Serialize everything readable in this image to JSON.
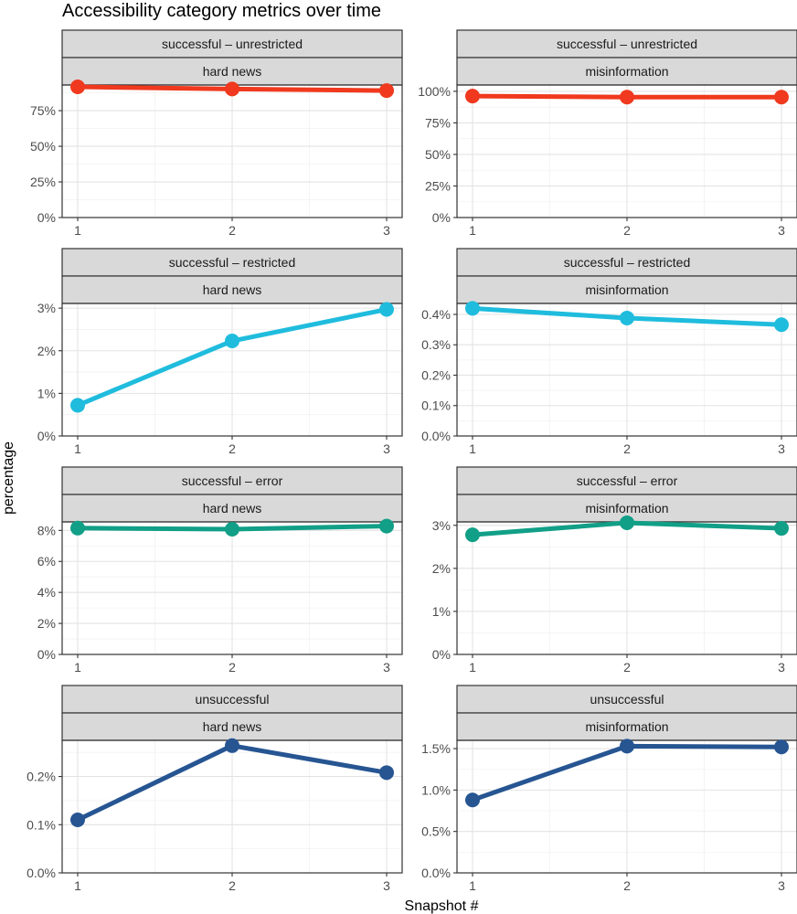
{
  "chart_data": {
    "type": "line",
    "title": "Accessibility category metrics over time",
    "xlabel": "Snapshot #",
    "ylabel": "percentage",
    "x": [
      1,
      2,
      3
    ],
    "x_tick_labels": [
      "1",
      "2",
      "3"
    ],
    "grid": true,
    "panels": [
      {
        "row_label": "successful – unrestricted",
        "col_label": "hard news",
        "color": "#f0391e",
        "values": [
          0.917,
          0.902,
          0.891
        ],
        "ylim": [
          0,
          0.93
        ],
        "y_ticks": [
          0,
          0.25,
          0.5,
          0.75
        ],
        "y_tick_labels": [
          "0%",
          "25%",
          "50%",
          "75%"
        ]
      },
      {
        "row_label": "successful – unrestricted",
        "col_label": "misinformation",
        "color": "#f0391e",
        "values": [
          0.962,
          0.954,
          0.954
        ],
        "ylim": [
          0,
          1.05
        ],
        "y_ticks": [
          0,
          0.25,
          0.5,
          0.75,
          1.0
        ],
        "y_tick_labels": [
          "0%",
          "25%",
          "50%",
          "75%",
          "100%"
        ]
      },
      {
        "row_label": "successful – restricted",
        "col_label": "hard news",
        "color": "#1fbcdd",
        "values": [
          0.0072,
          0.0223,
          0.0297
        ],
        "ylim": [
          0,
          0.0311
        ],
        "y_ticks": [
          0,
          0.01,
          0.02,
          0.03
        ],
        "y_tick_labels": [
          "0%",
          "1%",
          "2%",
          "3%"
        ]
      },
      {
        "row_label": "successful – restricted",
        "col_label": "misinformation",
        "color": "#1fbcdd",
        "values": [
          0.0042,
          0.00388,
          0.00366
        ],
        "ylim": [
          0,
          0.00436
        ],
        "y_ticks": [
          0,
          0.001,
          0.002,
          0.003,
          0.004
        ],
        "y_tick_labels": [
          "0.0%",
          "0.1%",
          "0.2%",
          "0.3%",
          "0.4%"
        ]
      },
      {
        "row_label": "successful – error",
        "col_label": "hard news",
        "color": "#119f87",
        "values": [
          0.0815,
          0.0808,
          0.0828
        ],
        "ylim": [
          0,
          0.0855
        ],
        "y_ticks": [
          0,
          0.02,
          0.04,
          0.06,
          0.08
        ],
        "y_tick_labels": [
          "0%",
          "2%",
          "4%",
          "6%",
          "8%"
        ]
      },
      {
        "row_label": "successful – error",
        "col_label": "misinformation",
        "color": "#119f87",
        "values": [
          0.0278,
          0.0306,
          0.0293
        ],
        "ylim": [
          0,
          0.0308
        ],
        "y_ticks": [
          0,
          0.01,
          0.02,
          0.03
        ],
        "y_tick_labels": [
          "0%",
          "1%",
          "2%",
          "3%"
        ]
      },
      {
        "row_label": "unsuccessful",
        "col_label": "hard news",
        "color": "#265592",
        "values": [
          0.0011,
          0.00264,
          0.00208
        ],
        "ylim": [
          0,
          0.00275
        ],
        "y_ticks": [
          0,
          0.001,
          0.002
        ],
        "y_tick_labels": [
          "0.0%",
          "0.1%",
          "0.2%"
        ]
      },
      {
        "row_label": "unsuccessful",
        "col_label": "misinformation",
        "color": "#265592",
        "values": [
          0.0088,
          0.0153,
          0.0152
        ],
        "ylim": [
          0,
          0.016
        ],
        "y_ticks": [
          0,
          0.005,
          0.01,
          0.015
        ],
        "y_tick_labels": [
          "0.0%",
          "0.5%",
          "1.0%",
          "1.5%"
        ]
      }
    ]
  }
}
